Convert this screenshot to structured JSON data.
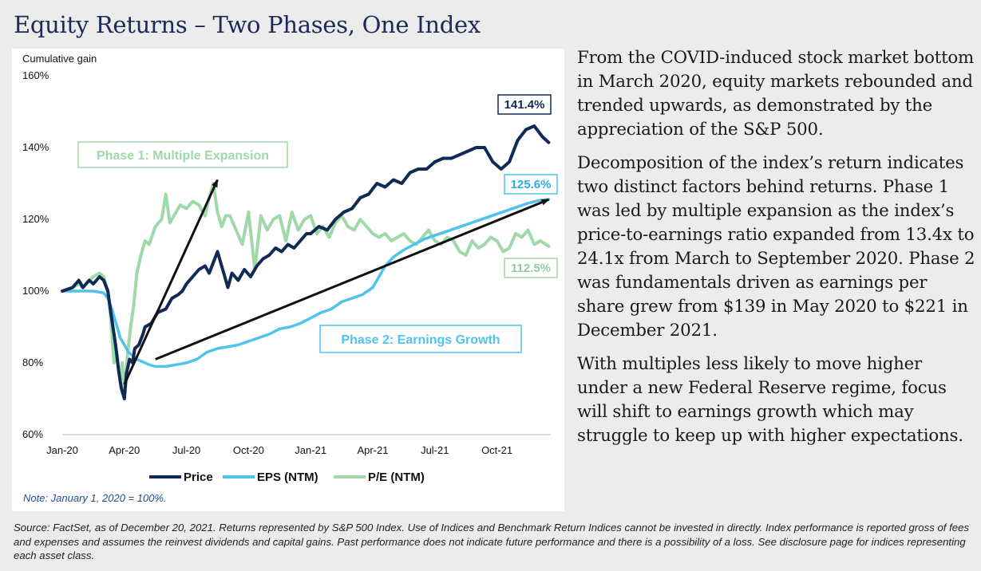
{
  "page": {
    "title": "Equity Returns – Two Phases, One Index",
    "paragraphs": [
      "From the COVID-induced stock market bottom in March 2020, equity markets rebounded and trended upwards, as demonstrated by the appreciation of the S&P 500.",
      "Decomposition of the index’s return indicates two distinct factors behind returns. Phase 1 was led by multiple expansion as the index’s price-to-earnings ratio expanded from 13.4x to 24.1x from March to September 2020. Phase 2 was fundamentals driven as earnings per share grew from $139 in May 2020 to $221 in December 2021.",
      "With multiples less likely to move higher under a new Federal Reserve regime, focus will shift to earnings growth which may struggle to keep up with higher expectations."
    ],
    "source": "Source: FactSet, as of December 20, 2021. Returns represented by S&P 500 Index. Use of Indices and Benchmark Return Indices cannot be invested in directly. Index performance is reported gross of fees and expenses and assumes the reinvest dividends and capital gains. Past performance does not indicate future performance and there is a possibility of a loss. See disclosure page for indices representing each asset class.",
    "note": "Note: January 1, 2020 = 100%."
  },
  "chart_data": {
    "type": "line",
    "ylabel": "Cumulative gain",
    "y_ticks": [
      "60%",
      "80%",
      "100%",
      "120%",
      "140%",
      "160%"
    ],
    "ylim": [
      60,
      160
    ],
    "x_ticks": [
      "Jan-20",
      "Apr-20",
      "Jul-20",
      "Oct-20",
      "Jan-21",
      "Apr-21",
      "Jul-21",
      "Oct-21"
    ],
    "x_tick_months": [
      0,
      3,
      6,
      9,
      12,
      15,
      18,
      21
    ],
    "xlim": [
      0,
      23.6
    ],
    "grid": false,
    "legend_position": "bottom",
    "colors": {
      "price": "#0f2a55",
      "eps": "#4fc3ee",
      "pe": "#9fd9a9"
    },
    "series": [
      {
        "name": "Price",
        "key": "price",
        "x": [
          0,
          0.5,
          0.8,
          1.0,
          1.3,
          1.5,
          1.8,
          2.0,
          2.2,
          2.3,
          2.45,
          2.6,
          2.72,
          2.85,
          3.0,
          3.1,
          3.25,
          3.4,
          3.5,
          3.7,
          3.9,
          4.0,
          4.3,
          4.6,
          5.0,
          5.3,
          5.6,
          5.8,
          6.0,
          6.3,
          6.6,
          6.9,
          7.1,
          7.3,
          7.5,
          7.7,
          7.9,
          8.0,
          8.2,
          8.5,
          8.8,
          9.1,
          9.4,
          9.7,
          10.0,
          10.3,
          10.6,
          10.9,
          11.2,
          11.5,
          11.8,
          12.0,
          12.4,
          12.8,
          13.2,
          13.6,
          14.0,
          14.4,
          14.8,
          15.2,
          15.6,
          16.0,
          16.4,
          16.8,
          17.2,
          17.6,
          18.0,
          18.4,
          18.8,
          19.2,
          19.6,
          20.0,
          20.4,
          20.8,
          21.2,
          21.6,
          22.0,
          22.4,
          22.8,
          23.2,
          23.5
        ],
        "values": [
          100,
          101,
          103,
          101,
          103,
          102,
          104,
          103,
          100,
          96,
          90,
          84,
          78,
          73,
          70,
          77,
          81,
          80,
          84,
          85,
          88,
          90,
          91,
          94,
          95,
          98,
          99,
          100,
          102,
          104,
          106,
          107,
          105,
          108,
          111,
          107,
          103,
          101,
          105,
          103,
          106,
          104,
          107,
          109,
          110,
          112,
          111,
          113,
          112,
          114,
          116,
          116,
          118,
          117,
          120,
          122,
          123,
          126,
          127,
          130,
          129,
          131,
          130,
          133,
          134,
          134,
          136,
          137,
          137,
          138,
          139,
          140,
          140,
          136,
          134,
          136,
          142,
          145,
          146,
          143,
          141.4
        ]
      },
      {
        "name": "EPS (NTM)",
        "key": "eps",
        "x": [
          0,
          1,
          1.5,
          2.0,
          2.2,
          2.4,
          2.6,
          2.8,
          3.0,
          3.2,
          3.4,
          3.6,
          3.8,
          4.0,
          4.2,
          4.5,
          5.0,
          5.5,
          6.0,
          6.5,
          7.0,
          7.5,
          8.0,
          8.5,
          9.0,
          9.5,
          10.0,
          10.5,
          11.0,
          11.5,
          12.0,
          12.5,
          13.0,
          13.5,
          14.0,
          14.5,
          15.0,
          15.3,
          15.6,
          16.0,
          16.5,
          17.0,
          17.5,
          18.0,
          18.5,
          19.0,
          19.5,
          20.0,
          20.5,
          21.0,
          21.5,
          22.0,
          22.5,
          23.0,
          23.5
        ],
        "values": [
          100,
          100,
          100,
          99.5,
          98,
          95,
          91,
          87,
          85,
          83,
          82,
          81,
          80.5,
          80,
          79.5,
          79,
          79,
          79.5,
          80,
          81,
          83,
          84,
          84.5,
          85,
          86,
          87,
          88,
          89.5,
          90,
          91,
          92.5,
          94,
          95,
          97,
          98,
          99,
          101,
          104,
          107,
          109.5,
          111.5,
          113,
          114.5,
          115.5,
          116.5,
          117.5,
          118.5,
          119.5,
          120.5,
          121.5,
          122.5,
          123.5,
          124.5,
          125.2,
          125.6
        ]
      },
      {
        "name": "P/E (NTM)",
        "key": "pe",
        "x": [
          0,
          0.5,
          0.8,
          1.0,
          1.3,
          1.5,
          1.8,
          2.0,
          2.2,
          2.35,
          2.5,
          2.65,
          2.8,
          2.9,
          3.0,
          3.15,
          3.3,
          3.45,
          3.6,
          3.8,
          4.0,
          4.2,
          4.5,
          4.8,
          5.0,
          5.2,
          5.4,
          5.7,
          6.0,
          6.3,
          6.6,
          6.9,
          7.1,
          7.3,
          7.5,
          7.7,
          7.9,
          8.1,
          8.4,
          8.7,
          9.0,
          9.3,
          9.6,
          9.9,
          10.2,
          10.5,
          10.8,
          11.1,
          11.4,
          11.7,
          12.0,
          12.3,
          12.6,
          12.9,
          13.2,
          13.5,
          13.8,
          14.1,
          14.4,
          14.7,
          15.0,
          15.3,
          15.6,
          15.9,
          16.2,
          16.5,
          16.8,
          17.1,
          17.4,
          17.7,
          18.0,
          18.3,
          18.6,
          18.9,
          19.2,
          19.5,
          19.8,
          20.1,
          20.4,
          20.7,
          21.0,
          21.3,
          21.6,
          21.9,
          22.2,
          22.5,
          22.8,
          23.1,
          23.5
        ],
        "values": [
          100,
          101,
          102,
          101,
          103,
          104,
          105,
          104,
          100,
          92,
          80,
          82,
          75,
          80,
          73,
          82,
          90,
          96,
          105,
          110,
          114,
          113,
          118,
          120,
          127,
          119,
          121,
          124,
          123,
          125,
          124,
          121,
          126,
          130,
          122,
          118,
          121,
          121,
          117,
          113,
          122,
          106,
          121,
          117,
          120,
          121,
          114,
          122,
          117,
          120,
          121,
          116,
          118,
          115,
          119,
          121,
          118,
          117,
          120,
          118,
          116,
          115,
          116,
          114,
          115,
          116,
          114,
          113,
          115,
          117,
          114,
          113,
          115,
          114,
          111,
          110,
          114,
          112,
          113,
          115,
          114,
          111,
          112,
          116,
          115,
          117,
          113,
          114,
          112.5
        ]
      }
    ],
    "data_labels": [
      {
        "series": "Price",
        "text": "141.4%"
      },
      {
        "series": "EPS (NTM)",
        "text": "125.6%"
      },
      {
        "series": "P/E (NTM)",
        "text": "112.5%"
      }
    ],
    "annotations": [
      {
        "text": "Phase 1: Multiple Expansion",
        "arrow_from": [
          3.0,
          74
        ],
        "arrow_to": [
          7.5,
          131
        ],
        "color": "#9fd9a9"
      },
      {
        "text": "Phase 2: Earnings Growth",
        "arrow_from": [
          4.5,
          81
        ],
        "arrow_to": [
          23.5,
          125.5
        ],
        "color": "#4fc3ee"
      }
    ]
  }
}
